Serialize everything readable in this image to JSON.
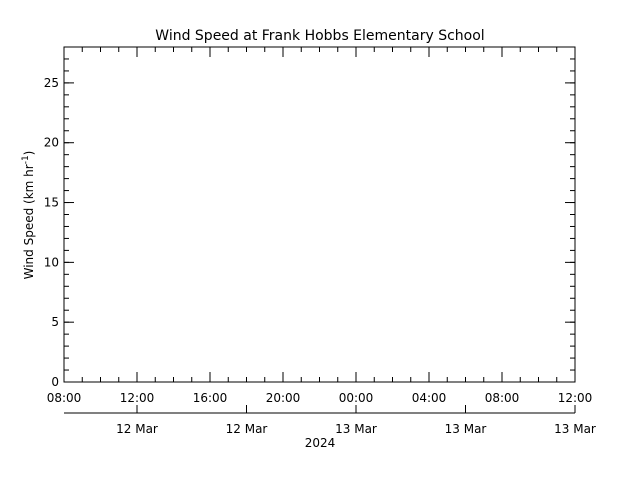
{
  "chart_data": {
    "type": "line",
    "title": "Wind Speed at Frank Hobbs Elementary School",
    "ylabel": {
      "text": "Wind Speed (km hr",
      "superscript": "-1",
      "suffix": ")"
    },
    "ylim": [
      0,
      28
    ],
    "yticks": [
      0,
      5,
      10,
      15,
      20,
      25
    ],
    "xticks": [
      "08:00",
      "12:00",
      "16:00",
      "20:00",
      "00:00",
      "04:00",
      "08:00",
      "12:00"
    ],
    "x2ticks": [
      "12 Mar",
      "12 Mar",
      "13 Mar",
      "13 Mar",
      "13 Mar"
    ],
    "x2label": "2024",
    "series": []
  }
}
